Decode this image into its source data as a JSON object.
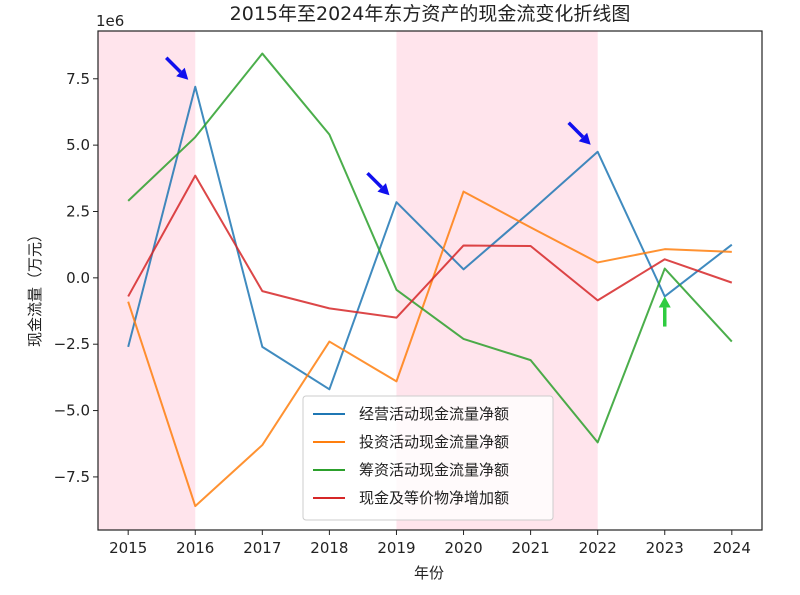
{
  "chart_data": {
    "type": "line",
    "title": "2015年至2024年东方资产的现金流变化折线图",
    "xlabel": "年份",
    "ylabel": "现金流量（万元）",
    "y_multiplier_label": "1e6",
    "x": [
      2015,
      2016,
      2017,
      2018,
      2019,
      2020,
      2021,
      2022,
      2023,
      2024
    ],
    "xlim": [
      2014.55,
      2024.45
    ],
    "ylim": [
      -9.5,
      9.3
    ],
    "y_unit_scale": "×1e6",
    "y_ticks": [
      -7.5,
      -5.0,
      -2.5,
      0.0,
      2.5,
      5.0,
      7.5
    ],
    "y_tick_labels": [
      "−7.5",
      "−5.0",
      "−2.5",
      "0.0",
      "2.5",
      "5.0",
      "7.5"
    ],
    "series": [
      {
        "name": "经营活动现金流量净额",
        "color": "#1f77b4",
        "values": [
          -2.6,
          7.2,
          -2.6,
          -4.2,
          2.85,
          0.32,
          2.5,
          4.75,
          -0.7,
          1.25
        ]
      },
      {
        "name": "投资活动现金流量净额",
        "color": "#ff7f0e",
        "values": [
          -0.9,
          -8.6,
          -6.3,
          -2.4,
          -3.9,
          3.25,
          1.9,
          0.58,
          1.08,
          0.98
        ]
      },
      {
        "name": "筹资活动现金流量净额",
        "color": "#2ca02c",
        "values": [
          2.9,
          5.3,
          8.45,
          5.4,
          -0.45,
          -2.3,
          -3.1,
          -6.2,
          0.35,
          -2.4
        ]
      },
      {
        "name": "现金及等价物净增加额",
        "color": "#d62728",
        "values": [
          -0.7,
          3.85,
          -0.5,
          -1.15,
          -1.5,
          1.22,
          1.2,
          -0.85,
          0.7,
          -0.18
        ]
      }
    ],
    "shaded_x_ranges": [
      [
        2014.55,
        2016
      ],
      [
        2019,
        2022
      ]
    ],
    "shade_color": "#ffe4ec",
    "annotations": [
      {
        "type": "arrow",
        "color": "#1010ee",
        "at": [
          2016,
          7.2
        ]
      },
      {
        "type": "arrow",
        "color": "#1010ee",
        "at": [
          2019,
          2.85
        ]
      },
      {
        "type": "arrow",
        "color": "#1010ee",
        "at": [
          2022,
          4.75
        ]
      },
      {
        "type": "arrow",
        "color": "#2ecc40",
        "at": [
          2023,
          0.35
        ]
      }
    ],
    "legend_position": "lower center",
    "grid": false
  }
}
